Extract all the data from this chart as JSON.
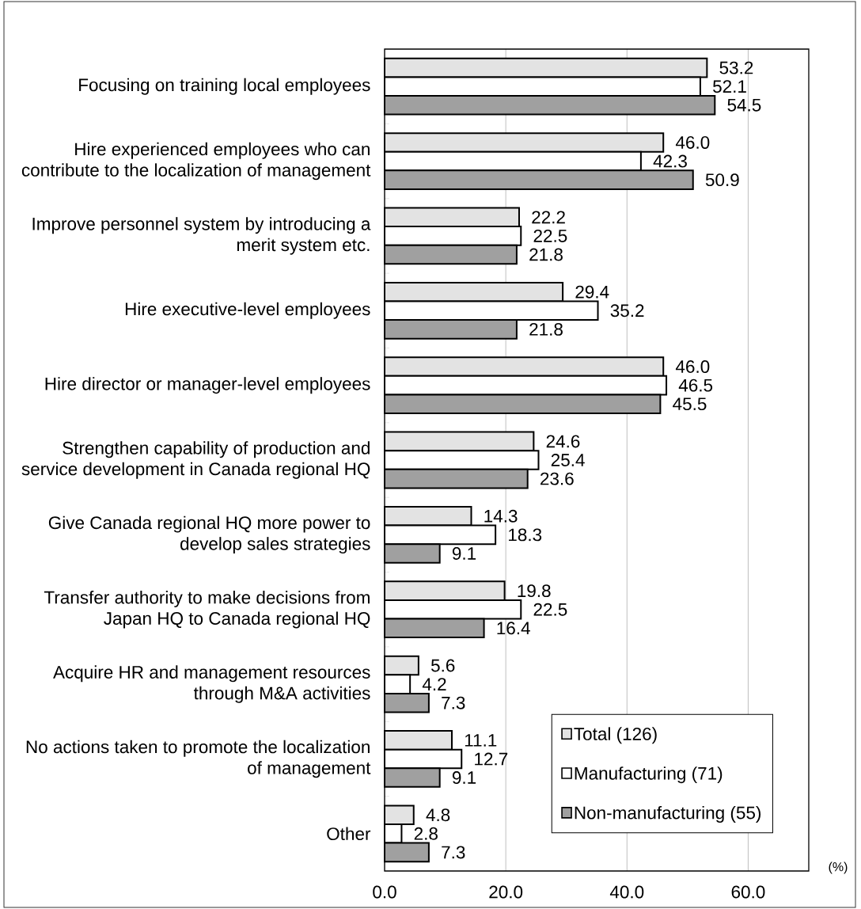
{
  "chart_data": {
    "type": "bar",
    "orientation": "horizontal",
    "categories": [
      "Focusing on training local employees",
      "Hire experienced employees who can contribute to the localization of management",
      "Improve personnel system by introducing a merit system etc.",
      "Hire executive-level employees",
      "Hire director or manager-level employees",
      "Strengthen capability of production and service development in Canada regional HQ",
      "Give Canada regional HQ more power to develop sales strategies",
      "Transfer authority to make decisions from Japan HQ to Canada regional HQ",
      "Acquire HR and management resources through M&A activities",
      "No actions taken to promote the localization of management",
      "Other"
    ],
    "series": [
      {
        "name": "Total (126)",
        "color": "#e3e3e3",
        "values": [
          53.2,
          46.0,
          22.2,
          29.4,
          46.0,
          24.6,
          14.3,
          19.8,
          5.6,
          11.1,
          4.8
        ],
        "value_labels": [
          "53.2",
          "46.0",
          "22.2",
          "29.4",
          "46.0",
          "24.6",
          "14.3",
          "19.8",
          "5.6",
          "11.1",
          "4.8"
        ]
      },
      {
        "name": "Manufacturing (71)",
        "color": "#ffffff",
        "values": [
          52.1,
          42.3,
          22.5,
          35.2,
          46.5,
          25.4,
          18.3,
          22.5,
          4.2,
          12.7,
          2.8
        ],
        "value_labels": [
          "52.1",
          "42.3",
          "22.5",
          "35.2",
          "46.5",
          "25.4",
          "18.3",
          "22.5",
          "4.2",
          "12.7",
          "2.8"
        ]
      },
      {
        "name": "Non-manufacturing (55)",
        "color": "#a0a0a0",
        "values": [
          54.5,
          50.9,
          21.8,
          21.8,
          45.5,
          23.6,
          9.1,
          16.4,
          7.3,
          9.1,
          7.3
        ],
        "value_labels": [
          "54.5",
          "50.9",
          "21.8",
          "21.8",
          "45.5",
          "23.6",
          "9.1",
          "16.4",
          "7.3",
          "9.1",
          "7.3"
        ]
      }
    ],
    "xlim": [
      0,
      70
    ],
    "xticks": [
      {
        "value": 0,
        "label": "0.0"
      },
      {
        "value": 20,
        "label": "20.0"
      },
      {
        "value": 40,
        "label": "40.0"
      },
      {
        "value": 60,
        "label": "60.0"
      }
    ],
    "grid": "x",
    "legend": "bottom right",
    "annotations": [
      "(%)"
    ]
  }
}
